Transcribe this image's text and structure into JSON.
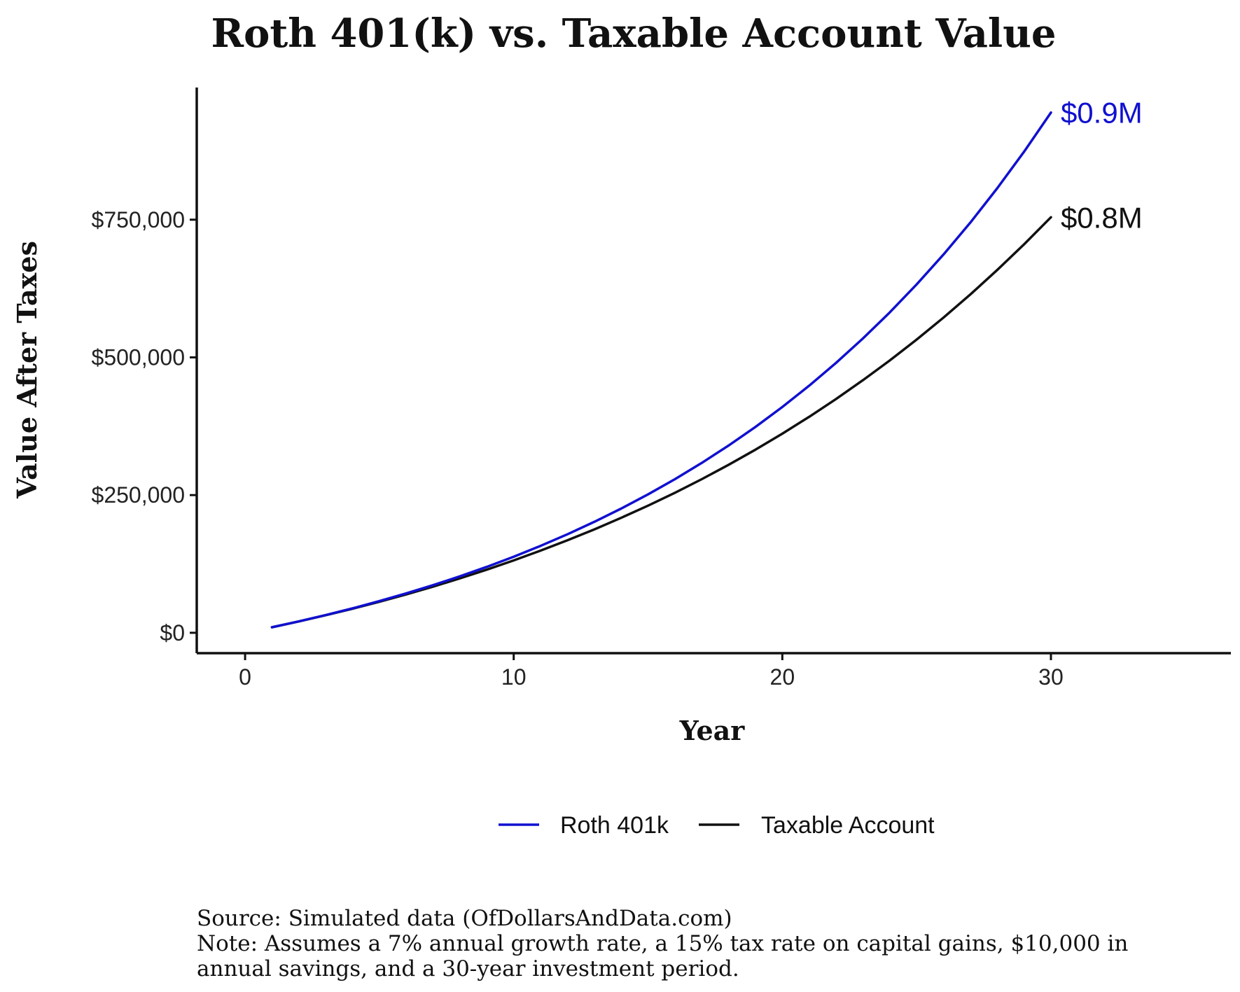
{
  "chart_data": {
    "type": "line",
    "title": "Roth 401(k) vs. Taxable Account Value",
    "xlabel": "Year",
    "ylabel": "Value After Taxes",
    "xlim": [
      -1.8,
      36.7
    ],
    "ylim": [
      -37000,
      990000
    ],
    "x_ticks": [
      0,
      10,
      20,
      30
    ],
    "x_tick_labels": [
      "0",
      "10",
      "20",
      "30"
    ],
    "y_ticks": [
      0,
      250000,
      500000,
      750000
    ],
    "y_tick_labels": [
      "$0",
      "$250,000",
      "$500,000",
      "$750,000"
    ],
    "grid": false,
    "legend_position": "bottom",
    "x": [
      1,
      2,
      3,
      4,
      5,
      6,
      7,
      8,
      9,
      10,
      11,
      12,
      13,
      14,
      15,
      16,
      17,
      18,
      19,
      20,
      21,
      22,
      23,
      24,
      25,
      26,
      27,
      28,
      29,
      30
    ],
    "series": [
      {
        "name": "Roth 401k",
        "color": "#1010d0",
        "end_label": "$0.9M",
        "values": [
          10000,
          20700,
          32149,
          44399,
          57507,
          71533,
          86540,
          102598,
          119780,
          138164,
          157836,
          178885,
          201406,
          225505,
          251290,
          278881,
          308402,
          339990,
          373790,
          409955,
          448652,
          490057,
          534361,
          581767,
          632490,
          686765,
          744838,
          806977,
          873465,
          944608
        ]
      },
      {
        "name": "Taxable Account",
        "color": "#111111",
        "end_label": "$0.8M",
        "values": [
          10000,
          20595,
          31830,
          43734,
          56346,
          69703,
          83846,
          98818,
          114664,
          131430,
          149165,
          167919,
          187745,
          208698,
          230836,
          254220,
          278913,
          304983,
          332499,
          361534,
          392166,
          424476,
          458549,
          494475,
          532346,
          572262,
          614327,
          658650,
          705346,
          754533
        ]
      }
    ]
  },
  "footnotes": {
    "source": "Source:  Simulated data (OfDollarsAndData.com)",
    "note_line1": "Note: Assumes a 7% annual growth rate, a 15% tax rate on capital gains, $10,000 in",
    "note_line2": "annual savings, and a 30-year investment period."
  }
}
